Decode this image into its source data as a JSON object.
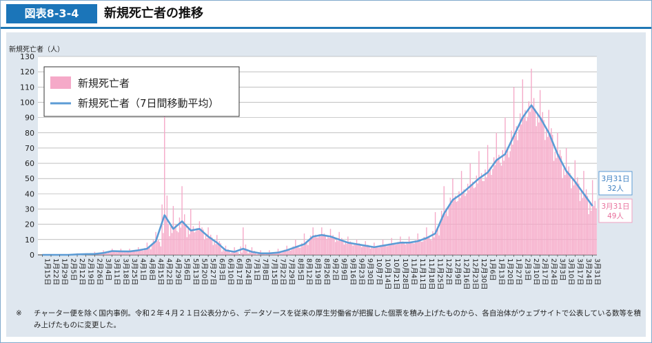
{
  "header": {
    "badge": "図表8-3-4",
    "title": "新規死亡者の推移"
  },
  "note": {
    "mark": "※",
    "text": "チャーター便を除く国内事例。令和２年４月２１日公表分から、データソースを従来の厚生労働省が把握した個票を積み上げたものから、各自治体がウェブサイトで公表している数等を積み上げたものに変更した。"
  },
  "chart_data": {
    "type": "bar",
    "ylabel": "新規死亡者（人）",
    "ylim": [
      0,
      130
    ],
    "yticks": [
      0,
      10,
      20,
      30,
      40,
      50,
      60,
      70,
      80,
      90,
      100,
      110,
      120,
      130
    ],
    "grid": true,
    "legend_position": "top-left",
    "series": [
      {
        "name": "新規死亡者",
        "kind": "bar",
        "color": "#f5a9c8"
      },
      {
        "name": "新規死亡者（7日間移動平均）",
        "kind": "line",
        "color": "#5b9bd5"
      }
    ],
    "x_tick_labels": [
      "1月15日",
      "1月22日",
      "1月29日",
      "2月5日",
      "2月12日",
      "2月19日",
      "2月26日",
      "3月4日",
      "3月11日",
      "3月18日",
      "3月25日",
      "4月1日",
      "4月8日",
      "4月15日",
      "4月22日",
      "4月29日",
      "5月6日",
      "5月13日",
      "5月20日",
      "5月27日",
      "6月3日",
      "6月10日",
      "6月17日",
      "6月24日",
      "7月1日",
      "7月8日",
      "7月15日",
      "7月22日",
      "7月29日",
      "8月5日",
      "8月12日",
      "8月19日",
      "8月26日",
      "9月2日",
      "9月9日",
      "9月16日",
      "9月23日",
      "9月30日",
      "10月7日",
      "10月14日",
      "10月21日",
      "10月28日",
      "11月4日",
      "11月11日",
      "11月18日",
      "11月25日",
      "12月2日",
      "12月9日",
      "12月16日",
      "12月23日",
      "12月30日",
      "1月6日",
      "1月13日",
      "1月20日",
      "1月27日",
      "2月3日",
      "2月10日",
      "2月17日",
      "2月24日",
      "3月3日",
      "3月10日",
      "3月17日",
      "3月24日",
      "3月31日"
    ],
    "moving_average_weekly": [
      0,
      0,
      0,
      0,
      0.3,
      0.5,
      0.6,
      1.2,
      2.5,
      2.3,
      2.2,
      3,
      4,
      9,
      26,
      17,
      22,
      16,
      17,
      12,
      8,
      3,
      2,
      4,
      2,
      1,
      1,
      1.5,
      3,
      5,
      7,
      12,
      13,
      12,
      10,
      8,
      7,
      6,
      5,
      6,
      7,
      8,
      8,
      9,
      11,
      14,
      27,
      36,
      40,
      45,
      50,
      54,
      62,
      66,
      78,
      90,
      98,
      90,
      80,
      66,
      55,
      48,
      40,
      32
    ],
    "daily_peaks_weekly": [
      0,
      0,
      0,
      0,
      1,
      1,
      2,
      3,
      4,
      4,
      4,
      5,
      8,
      15,
      91,
      32,
      45,
      30,
      22,
      18,
      13,
      6,
      5,
      18,
      5,
      3,
      3,
      4,
      6,
      10,
      14,
      18,
      18,
      17,
      15,
      12,
      10,
      9,
      8,
      10,
      11,
      12,
      12,
      14,
      18,
      28,
      45,
      50,
      55,
      60,
      68,
      72,
      80,
      90,
      110,
      115,
      122,
      108,
      95,
      80,
      70,
      62,
      55,
      49
    ],
    "callouts": [
      {
        "date": "3月31日",
        "value_label": "32人",
        "series": "新規死亡者（7日間移動平均）"
      },
      {
        "date": "3月31日",
        "value_label": "49人",
        "series": "新規死亡者"
      }
    ]
  }
}
